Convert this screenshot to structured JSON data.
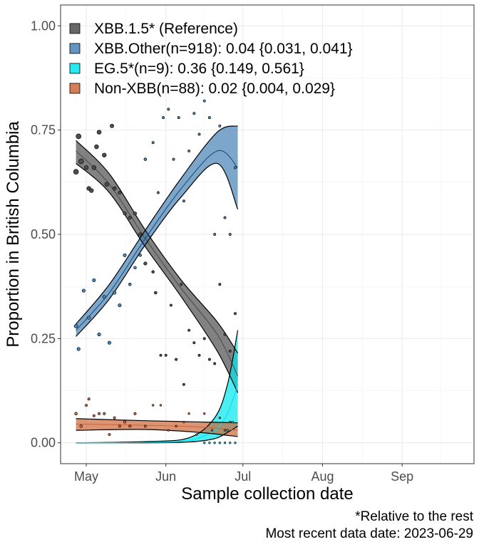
{
  "chart_data": {
    "type": "scatter",
    "xlabel": "Sample collection date",
    "ylabel": "Proportion in British Columbia",
    "xlim": [
      "2023-04-21",
      "2023-09-29"
    ],
    "ylim": [
      -0.05,
      1.05
    ],
    "x_ticks": [
      {
        "date": "2023-05-01",
        "label": "May"
      },
      {
        "date": "2023-06-01",
        "label": "Jun"
      },
      {
        "date": "2023-07-01",
        "label": "Jul"
      },
      {
        "date": "2023-08-01",
        "label": "Aug"
      },
      {
        "date": "2023-09-01",
        "label": "Sep"
      }
    ],
    "y_ticks": [
      {
        "value": 0,
        "label": "0.00"
      },
      {
        "value": 0.25,
        "label": "0.25"
      },
      {
        "value": 0.5,
        "label": "0.50"
      },
      {
        "value": 0.75,
        "label": "0.75"
      },
      {
        "value": 1,
        "label": "1.00"
      }
    ],
    "grid": true,
    "legend_position": "top-left",
    "captions": [
      "*Relative to the rest",
      "Most recent data date: 2023-06-29"
    ],
    "series": [
      {
        "name": "XBB.1.5* (Reference)",
        "color": "#4d4d4d",
        "fit_x": [
          "2023-04-27",
          "2023-05-10",
          "2023-05-24",
          "2023-06-07",
          "2023-06-21",
          "2023-06-29"
        ],
        "fit": [
          0.7,
          0.62,
          0.49,
          0.37,
          0.26,
          0.16
        ],
        "lower": [
          0.67,
          0.6,
          0.47,
          0.35,
          0.22,
          0.12
        ],
        "upper": [
          0.725,
          0.645,
          0.51,
          0.39,
          0.29,
          0.215
        ],
        "points": [
          {
            "x": "2023-04-27",
            "y": 0.65,
            "s": 5
          },
          {
            "x": "2023-04-28",
            "y": 0.735,
            "s": 5
          },
          {
            "x": "2023-04-29",
            "y": 0.675,
            "s": 5
          },
          {
            "x": "2023-05-01",
            "y": 0.66,
            "s": 4
          },
          {
            "x": "2023-05-02",
            "y": 0.61,
            "s": 4
          },
          {
            "x": "2023-05-03",
            "y": 0.605,
            "s": 4
          },
          {
            "x": "2023-05-04",
            "y": 0.66,
            "s": 4
          },
          {
            "x": "2023-05-05",
            "y": 0.71,
            "s": 4
          },
          {
            "x": "2023-05-06",
            "y": 0.745,
            "s": 4
          },
          {
            "x": "2023-05-08",
            "y": 0.69,
            "s": 4
          },
          {
            "x": "2023-05-09",
            "y": 0.62,
            "s": 4
          },
          {
            "x": "2023-05-11",
            "y": 0.76,
            "s": 3.5
          },
          {
            "x": "2023-05-12",
            "y": 0.61,
            "s": 3.5
          },
          {
            "x": "2023-05-14",
            "y": 0.6,
            "s": 3
          },
          {
            "x": "2023-05-16",
            "y": 0.55,
            "s": 3
          },
          {
            "x": "2023-05-18",
            "y": 0.54,
            "s": 3
          },
          {
            "x": "2023-05-20",
            "y": 0.55,
            "s": 3
          },
          {
            "x": "2023-05-22",
            "y": 0.5,
            "s": 3
          },
          {
            "x": "2023-05-24",
            "y": 0.43,
            "s": 3
          },
          {
            "x": "2023-05-27",
            "y": 0.41,
            "s": 2.5
          },
          {
            "x": "2023-05-28",
            "y": 0.36,
            "s": 2.5
          },
          {
            "x": "2023-05-30",
            "y": 0.21,
            "s": 2
          },
          {
            "x": "2023-06-01",
            "y": 0.21,
            "s": 2
          },
          {
            "x": "2023-06-03",
            "y": 0.33,
            "s": 2
          },
          {
            "x": "2023-06-05",
            "y": 0.2,
            "s": 2
          },
          {
            "x": "2023-06-07",
            "y": 0.38,
            "s": 2
          },
          {
            "x": "2023-06-08",
            "y": 0.14,
            "s": 2
          },
          {
            "x": "2023-06-10",
            "y": 0.27,
            "s": 2
          },
          {
            "x": "2023-06-12",
            "y": 0.24,
            "s": 2
          },
          {
            "x": "2023-06-14",
            "y": 0.21,
            "s": 2
          },
          {
            "x": "2023-06-16",
            "y": 0.25,
            "s": 2
          },
          {
            "x": "2023-06-18",
            "y": 0.2,
            "s": 2
          },
          {
            "x": "2023-06-20",
            "y": 0.19,
            "s": 2
          },
          {
            "x": "2023-06-22",
            "y": 0.38,
            "s": 2
          },
          {
            "x": "2023-06-24",
            "y": 0.26,
            "s": 2
          },
          {
            "x": "2023-06-26",
            "y": 0.22,
            "s": 2
          },
          {
            "x": "2023-06-28",
            "y": 0.31,
            "s": 2
          }
        ]
      },
      {
        "name": "XBB.Other(n=918): 0.04 {0.031, 0.041}",
        "color": "#4682b4",
        "fit_x": [
          "2023-04-27",
          "2023-05-10",
          "2023-05-24",
          "2023-06-07",
          "2023-06-21",
          "2023-06-29"
        ],
        "fit": [
          0.27,
          0.36,
          0.49,
          0.61,
          0.7,
          0.66
        ],
        "lower": [
          0.255,
          0.345,
          0.475,
          0.59,
          0.67,
          0.56
        ],
        "upper": [
          0.285,
          0.38,
          0.51,
          0.635,
          0.745,
          0.76
        ],
        "points": [
          {
            "x": "2023-04-27",
            "y": 0.28,
            "s": 3.5
          },
          {
            "x": "2023-04-28",
            "y": 0.225,
            "s": 3
          },
          {
            "x": "2023-04-30",
            "y": 0.365,
            "s": 3
          },
          {
            "x": "2023-05-02",
            "y": 0.3,
            "s": 3
          },
          {
            "x": "2023-05-04",
            "y": 0.39,
            "s": 3
          },
          {
            "x": "2023-05-06",
            "y": 0.26,
            "s": 3
          },
          {
            "x": "2023-05-08",
            "y": 0.35,
            "s": 3
          },
          {
            "x": "2023-05-10",
            "y": 0.24,
            "s": 3
          },
          {
            "x": "2023-05-12",
            "y": 0.36,
            "s": 3
          },
          {
            "x": "2023-05-14",
            "y": 0.33,
            "s": 3
          },
          {
            "x": "2023-05-16",
            "y": 0.45,
            "s": 3
          },
          {
            "x": "2023-05-18",
            "y": 0.38,
            "s": 2.5
          },
          {
            "x": "2023-05-20",
            "y": 0.42,
            "s": 2.5
          },
          {
            "x": "2023-05-22",
            "y": 0.45,
            "s": 2.5
          },
          {
            "x": "2023-05-24",
            "y": 0.68,
            "s": 2.5
          },
          {
            "x": "2023-05-27",
            "y": 0.72,
            "s": 2
          },
          {
            "x": "2023-05-29",
            "y": 0.6,
            "s": 2
          },
          {
            "x": "2023-05-31",
            "y": 0.78,
            "s": 2
          },
          {
            "x": "2023-06-02",
            "y": 0.8,
            "s": 2
          },
          {
            "x": "2023-06-04",
            "y": 0.68,
            "s": 2
          },
          {
            "x": "2023-06-06",
            "y": 0.78,
            "s": 2
          },
          {
            "x": "2023-06-08",
            "y": 0.58,
            "s": 2
          },
          {
            "x": "2023-06-10",
            "y": 0.7,
            "s": 2
          },
          {
            "x": "2023-06-12",
            "y": 0.79,
            "s": 2
          },
          {
            "x": "2023-06-14",
            "y": 0.74,
            "s": 2
          },
          {
            "x": "2023-06-16",
            "y": 0.82,
            "s": 2
          },
          {
            "x": "2023-06-18",
            "y": 0.78,
            "s": 2
          },
          {
            "x": "2023-06-20",
            "y": 0.5,
            "s": 2
          },
          {
            "x": "2023-06-22",
            "y": 0.76,
            "s": 2
          },
          {
            "x": "2023-06-24",
            "y": 0.54,
            "s": 2
          },
          {
            "x": "2023-06-26",
            "y": 0.5,
            "s": 2
          },
          {
            "x": "2023-06-28",
            "y": 0.66,
            "s": 2
          }
        ]
      },
      {
        "name": "EG.5*(n=9): 0.36 {0.149, 0.561}",
        "color": "#00e5ee",
        "fit_x": [
          "2023-04-27",
          "2023-05-24",
          "2023-06-10",
          "2023-06-20",
          "2023-06-25",
          "2023-06-29"
        ],
        "fit": [
          0.0,
          0.001,
          0.006,
          0.03,
          0.07,
          0.14
        ],
        "lower": [
          0.0,
          0.0,
          0.002,
          0.01,
          0.025,
          0.04
        ],
        "upper": [
          0.0,
          0.003,
          0.012,
          0.06,
          0.14,
          0.27
        ],
        "points": [
          {
            "x": "2023-06-16",
            "y": 0.0,
            "s": 1.5
          },
          {
            "x": "2023-06-18",
            "y": 0.0,
            "s": 1.5
          },
          {
            "x": "2023-06-20",
            "y": 0.0,
            "s": 1.5
          },
          {
            "x": "2023-06-22",
            "y": 0.0,
            "s": 1.5
          },
          {
            "x": "2023-06-24",
            "y": 0.0,
            "s": 1.5
          },
          {
            "x": "2023-06-25",
            "y": 0.03,
            "s": 1.5
          },
          {
            "x": "2023-06-26",
            "y": 0.0,
            "s": 1.5
          },
          {
            "x": "2023-06-27",
            "y": 0.05,
            "s": 1.5
          },
          {
            "x": "2023-06-28",
            "y": 0.0,
            "s": 1.5
          }
        ]
      },
      {
        "name": "Non-XBB(n=88): 0.02 {0.004, 0.029}",
        "color": "#cd6839",
        "fit_x": [
          "2023-04-27",
          "2023-05-24",
          "2023-06-14",
          "2023-06-29"
        ],
        "fit": [
          0.045,
          0.042,
          0.038,
          0.03
        ],
        "lower": [
          0.03,
          0.032,
          0.025,
          0.015
        ],
        "upper": [
          0.058,
          0.053,
          0.05,
          0.048
        ],
        "points": [
          {
            "x": "2023-04-27",
            "y": 0.07,
            "s": 2.5
          },
          {
            "x": "2023-04-29",
            "y": 0.04,
            "s": 2.5
          },
          {
            "x": "2023-05-01",
            "y": 0.09,
            "s": 2
          },
          {
            "x": "2023-05-02",
            "y": 0.105,
            "s": 2
          },
          {
            "x": "2023-05-04",
            "y": 0.065,
            "s": 2
          },
          {
            "x": "2023-05-06",
            "y": 0.07,
            "s": 2
          },
          {
            "x": "2023-05-08",
            "y": 0.07,
            "s": 2
          },
          {
            "x": "2023-05-10",
            "y": 0.02,
            "s": 2
          },
          {
            "x": "2023-05-12",
            "y": 0.06,
            "s": 2
          },
          {
            "x": "2023-05-14",
            "y": 0.04,
            "s": 2
          },
          {
            "x": "2023-05-16",
            "y": 0.05,
            "s": 2
          },
          {
            "x": "2023-05-18",
            "y": 0.04,
            "s": 2
          },
          {
            "x": "2023-05-20",
            "y": 0.07,
            "s": 2
          },
          {
            "x": "2023-05-24",
            "y": 0.04,
            "s": 2
          },
          {
            "x": "2023-05-27",
            "y": 0.09,
            "s": 1.5
          },
          {
            "x": "2023-05-30",
            "y": 0.09,
            "s": 1.5
          },
          {
            "x": "2023-06-02",
            "y": 0.03,
            "s": 1.5
          },
          {
            "x": "2023-06-05",
            "y": 0.04,
            "s": 1.5
          },
          {
            "x": "2023-06-08",
            "y": 0.05,
            "s": 1.5
          },
          {
            "x": "2023-06-10",
            "y": 0.07,
            "s": 1.5
          },
          {
            "x": "2023-06-13",
            "y": 0.02,
            "s": 1.5
          },
          {
            "x": "2023-06-16",
            "y": 0.07,
            "s": 1.5
          },
          {
            "x": "2023-06-19",
            "y": 0.03,
            "s": 1.5
          },
          {
            "x": "2023-06-22",
            "y": 0.06,
            "s": 1.5
          },
          {
            "x": "2023-06-24",
            "y": 0.03,
            "s": 1.5
          },
          {
            "x": "2023-06-26",
            "y": 0.05,
            "s": 1.5
          }
        ]
      }
    ]
  }
}
